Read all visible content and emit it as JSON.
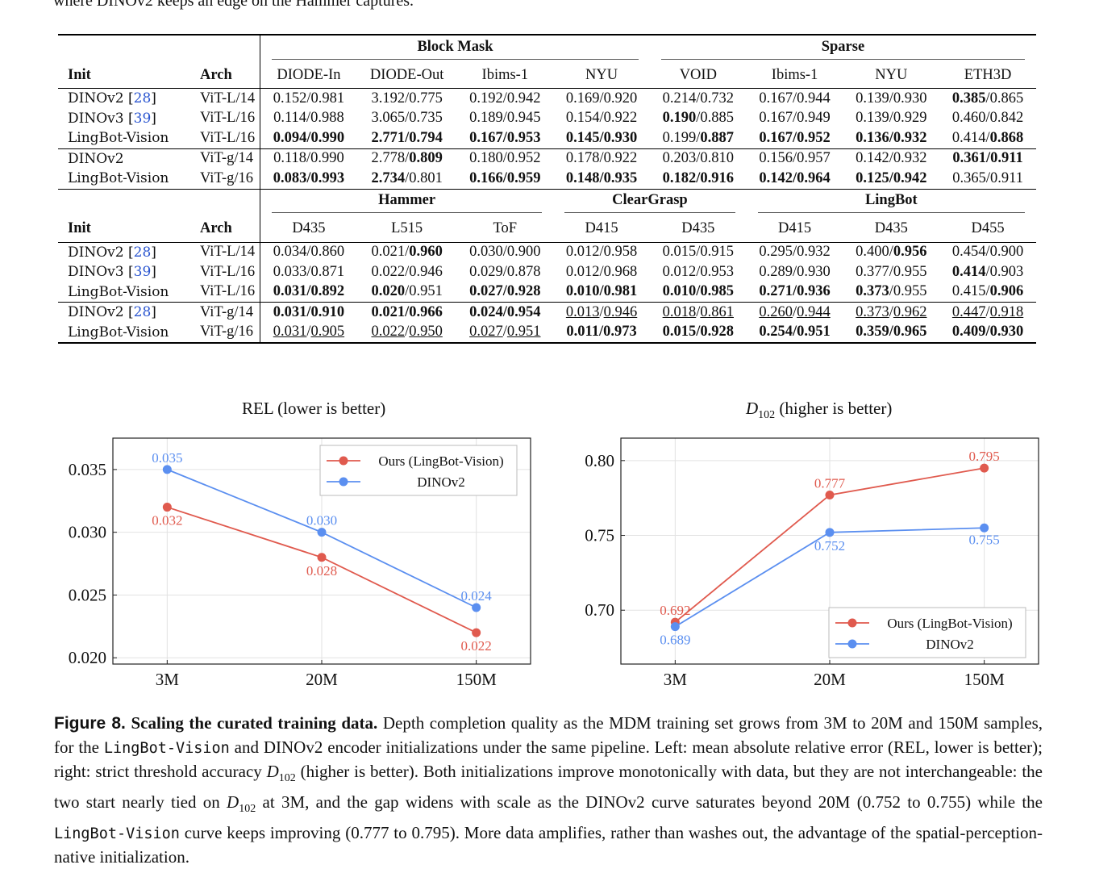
{
  "top_text": "where DINOv2 keeps an edge on the Hammer captures.",
  "table1": {
    "group_headers": [
      "Block Mask",
      "Sparse"
    ],
    "columns": [
      "Init",
      "Arch",
      "DIODE-In",
      "DIODE-Out",
      "Ibims-1",
      "NYU",
      "VOID",
      "Ibims-1",
      "NYU",
      "ETH3D"
    ],
    "rows": [
      [
        "DINOv2 [28]",
        "ViT-L/14",
        "0.152/0.981",
        "3.192/0.775",
        "0.192/0.942",
        "0.169/0.920",
        "0.214/0.732",
        "0.167/0.944",
        "0.139/0.930",
        "**0.385**/0.865"
      ],
      [
        "DINOv3 [39]",
        "ViT-L/16",
        "0.114/0.988",
        "3.065/0.735",
        "0.189/0.945",
        "0.154/0.922",
        "**0.190**/0.885",
        "0.167/0.949",
        "0.139/0.929",
        "0.460/0.842"
      ],
      [
        "LingBot-Vision",
        "ViT-L/16",
        "**0.094/0.990**",
        "**2.771/0.794**",
        "**0.167/0.953**",
        "**0.145/0.930**",
        "0.199/**0.887**",
        "**0.167/0.952**",
        "**0.136/0.932**",
        "0.414/**0.868**"
      ],
      [
        "DINOv2",
        "ViT-g/14",
        "0.118/0.990",
        "2.778/**0.809**",
        "0.180/0.952",
        "0.178/0.922",
        "0.203/0.810",
        "0.156/0.957",
        "0.142/0.932",
        "**0.361/0.911**"
      ],
      [
        "LingBot-Vision",
        "ViT-g/16",
        "**0.083/0.993**",
        "**2.734**/0.801",
        "**0.166/0.959**",
        "**0.148/0.935**",
        "**0.182/0.916**",
        "**0.142/0.964**",
        "**0.125/0.942**",
        "0.365/0.911"
      ]
    ]
  },
  "table2": {
    "group_headers": [
      "Hammer",
      "ClearGrasp",
      "LingBot"
    ],
    "columns": [
      "Init",
      "Arch",
      "D435",
      "L515",
      "ToF",
      "D415",
      "D435",
      "D415",
      "D435",
      "D455"
    ],
    "rows": [
      [
        "DINOv2 [28]",
        "ViT-L/14",
        "0.034/0.860",
        "0.021/**0.960**",
        "0.030/0.900",
        "0.012/0.958",
        "0.015/0.915",
        "0.295/0.932",
        "0.400/**0.956**",
        "0.454/0.900"
      ],
      [
        "DINOv3 [39]",
        "ViT-L/16",
        "0.033/0.871",
        "0.022/0.946",
        "0.029/0.878",
        "0.012/0.968",
        "0.012/0.953",
        "0.289/0.930",
        "0.377/0.955",
        "**0.414**/0.903"
      ],
      [
        "LingBot-Vision",
        "ViT-L/16",
        "**0.031/0.892**",
        "**0.020**/0.951",
        "**0.027/0.928**",
        "**0.010/0.981**",
        "**0.010/0.985**",
        "**0.271/0.936**",
        "**0.373**/0.955",
        "0.415/**0.906**"
      ],
      [
        "DINOv2 [28]",
        "ViT-g/14",
        "**0.031/0.910**",
        "**0.021/0.966**",
        "**0.024/0.954**",
        "__0.013__/__0.946__",
        "__0.018__/__0.861__",
        "__0.260__/__0.944__",
        "__0.373__/__0.962__",
        "__0.447__/__0.918__"
      ],
      [
        "LingBot-Vision",
        "ViT-g/16",
        "__0.031__/__0.905__",
        "__0.022__/__0.950__",
        "__0.027__/__0.951__",
        "**0.011/0.973**",
        "**0.015/0.928**",
        "**0.254/0.951**",
        "**0.359/0.965**",
        "**0.409/0.930**"
      ]
    ]
  },
  "chart_data": [
    {
      "type": "line",
      "title": "REL (lower is better)",
      "categories": [
        "3M",
        "20M",
        "150M"
      ],
      "series": [
        {
          "name": "Ours (LingBot-Vision)",
          "color": "#e05a4e",
          "values": [
            0.032,
            0.028,
            0.022
          ],
          "labels": [
            "0.032",
            "0.028",
            "0.022"
          ]
        },
        {
          "name": "DINOv2",
          "color": "#5b8ff0",
          "values": [
            0.035,
            0.03,
            0.024
          ],
          "labels": [
            "0.035",
            "0.030",
            "0.024"
          ]
        }
      ],
      "ylim": [
        0.0195,
        0.0375
      ],
      "yticks": [
        "0.020",
        "0.025",
        "0.030",
        "0.035"
      ],
      "grid": true,
      "legend": "top-right"
    },
    {
      "type": "line",
      "title": "D",
      "title_sub": "102",
      "title_rest": " (higher is better)",
      "categories": [
        "3M",
        "20M",
        "150M"
      ],
      "series": [
        {
          "name": "Ours (LingBot-Vision)",
          "color": "#e05a4e",
          "values": [
            0.692,
            0.777,
            0.795
          ],
          "labels": [
            "0.692",
            "0.777",
            "0.795"
          ]
        },
        {
          "name": "DINOv2",
          "color": "#5b8ff0",
          "values": [
            0.689,
            0.752,
            0.755
          ],
          "labels": [
            "0.689",
            "0.752",
            "0.755"
          ]
        }
      ],
      "ylim": [
        0.664,
        0.815
      ],
      "yticks": [
        "0.70",
        "0.75",
        "0.80"
      ],
      "grid": true,
      "legend": "bottom-right"
    }
  ],
  "caption": {
    "label": "Figure 8.",
    "bold": "Scaling the curated training data.",
    "p1": " Depth completion quality as the MDM training set grows from 3M to 20M and 150M samples, for the ",
    "mono1": "LingBot-Vision",
    "p2": " and DINOv2 encoder initializations under the same pipeline. Left: mean absolute relative error (REL, lower is better); right: strict threshold accuracy ",
    "d1": "D",
    "d1sub": "102",
    "p3": " (higher is better). Both initializations improve monotonically with data, but they are not interchangeable: the two start nearly tied on ",
    "d2": "D",
    "d2sub": "102",
    "p4": " at 3M, and the gap widens with scale as the DINOv2 curve saturates beyond 20M (0.752 to 0.755) while the ",
    "mono2": "LingBot-Vision",
    "p5": " curve keeps improving (0.777 to 0.795). More data amplifies, rather than washes out, the advantage of the spatial-perception-native initialization."
  }
}
